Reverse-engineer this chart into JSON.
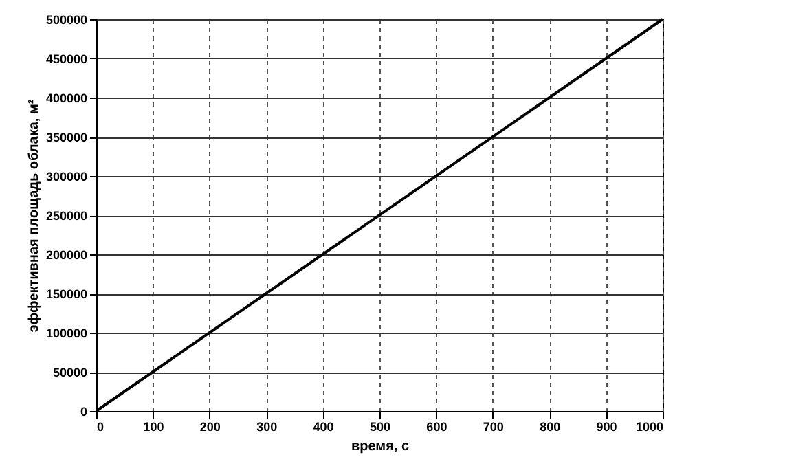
{
  "chart_data": {
    "type": "line",
    "xlabel": "время, с",
    "ylabel": "эффективная площадь облака, м²",
    "x": [
      0,
      1000
    ],
    "series": [
      {
        "color": "#000000",
        "values": [
          0,
          500000
        ]
      }
    ],
    "xlim": [
      0,
      1000
    ],
    "xticks": [
      0,
      100,
      200,
      300,
      400,
      500,
      600,
      700,
      800,
      900,
      1000
    ],
    "ylim": [
      0,
      500000
    ],
    "yticks": [
      0,
      50000,
      100000,
      150000,
      200000,
      250000,
      300000,
      350000,
      400000,
      450000,
      500000
    ],
    "grid": true,
    "marker": "none",
    "line_style": "solid"
  }
}
